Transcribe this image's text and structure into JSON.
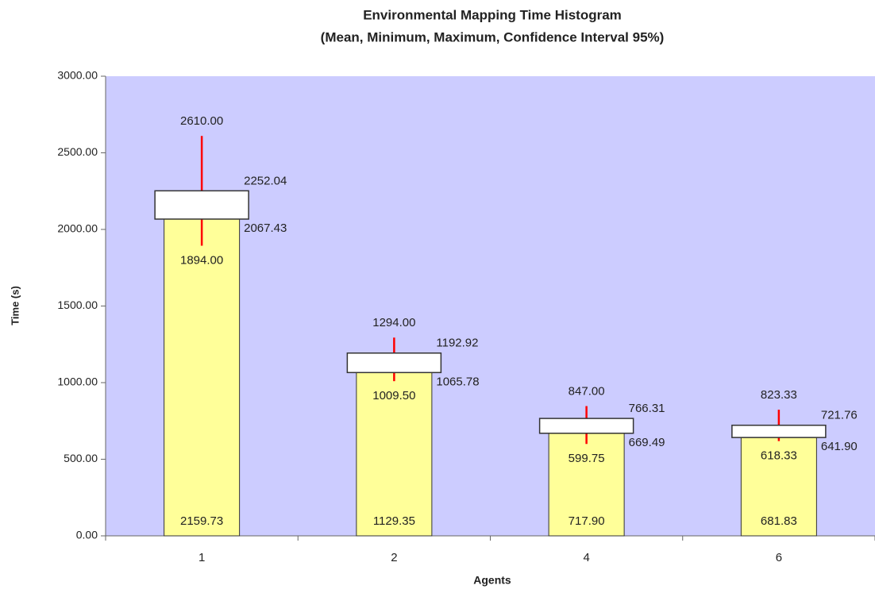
{
  "chart_data": {
    "type": "bar",
    "title": "Environmental Mapping Time Histogram",
    "subtitle": "(Mean, Minimum, Maximum, Confidence Interval 95%)",
    "x_label": "Agents",
    "y_label": "Time (s)",
    "categories": [
      "1",
      "2",
      "4",
      "6"
    ],
    "mean": {
      "values": [
        2159.73,
        1129.35,
        717.9,
        681.83
      ],
      "value_labels": [
        "2159.73",
        "1129.35",
        "717.90",
        "681.83"
      ]
    },
    "minimum": {
      "values": [
        1894,
        1009.5,
        599.75,
        618.33
      ],
      "value_labels": [
        "1894.00",
        "1009.50",
        "599.75",
        "618.33"
      ]
    },
    "maximum": {
      "values": [
        2610,
        1294,
        847,
        823.33
      ],
      "value_labels": [
        "2610.00",
        "1294.00",
        "847.00",
        "823.33"
      ]
    },
    "ci_lower": {
      "values": [
        2067.43,
        1065.78,
        669.49,
        641.9
      ],
      "value_labels": [
        "2067.43",
        "1065.78",
        "669.49",
        "641.90"
      ]
    },
    "ci_upper": {
      "values": [
        2252.04,
        1192.92,
        766.31,
        721.76
      ],
      "value_labels": [
        "2252.04",
        "1192.92",
        "766.31",
        "721.76"
      ]
    },
    "bar_color": "#ffff99",
    "interval_color": "#ffffff",
    "range_color": "#ff0000",
    "plot_background": "#ccccff",
    "ylim": [
      0,
      3000
    ],
    "yticks": [
      {
        "value": 0,
        "label": "0.00"
      },
      {
        "value": 500,
        "label": "500.00"
      },
      {
        "value": 1000,
        "label": "1000.00"
      },
      {
        "value": 1500,
        "label": "1500.00"
      },
      {
        "value": 2000,
        "label": "2000.00"
      },
      {
        "value": 2500,
        "label": "2500.00"
      },
      {
        "value": 3000,
        "label": "3000.00"
      }
    ],
    "grid": false
  }
}
